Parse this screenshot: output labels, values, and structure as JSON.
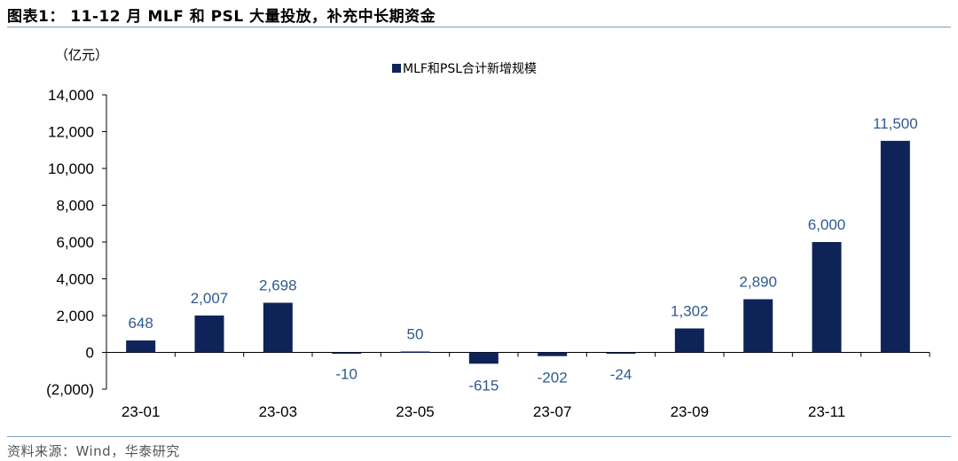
{
  "figure": {
    "title": "图表1： 11-12 月 MLF 和 PSL 大量投放，补充中长期资金",
    "source": "资料来源：Wind，华泰研究"
  },
  "colors": {
    "bar": "#0e2458",
    "label": "#2e5a8f",
    "rule": "#7fa0c8"
  },
  "chart_data": {
    "type": "bar",
    "unit": "（亿元）",
    "categories": [
      "23-01",
      "23-02",
      "23-03",
      "23-04",
      "23-05",
      "23-06",
      "23-07",
      "23-08",
      "23-09",
      "23-10",
      "23-11",
      "23-12"
    ],
    "x_tick_labels": [
      "23-01",
      "",
      "23-03",
      "",
      "23-05",
      "",
      "23-07",
      "",
      "23-09",
      "",
      "23-11",
      ""
    ],
    "series": [
      {
        "name": "MLF和PSL合计新增规模",
        "values": [
          648,
          2007,
          2698,
          -10,
          50,
          -615,
          -202,
          -24,
          1302,
          2890,
          6000,
          11500
        ],
        "data_labels": [
          "648",
          "2,007",
          "2,698",
          "-10",
          "50",
          "-615",
          "-202",
          "-24",
          "1,302",
          "2,890",
          "6,000",
          "11,500"
        ]
      }
    ],
    "ylim": [
      -2000,
      14000
    ],
    "yticks": [
      -2000,
      0,
      2000,
      4000,
      6000,
      8000,
      10000,
      12000,
      14000
    ],
    "ytick_labels": [
      "(2,000)",
      "0",
      "2,000",
      "4,000",
      "6,000",
      "8,000",
      "10,000",
      "12,000",
      "14,000"
    ],
    "grid": false,
    "legend_position": "top-center"
  }
}
